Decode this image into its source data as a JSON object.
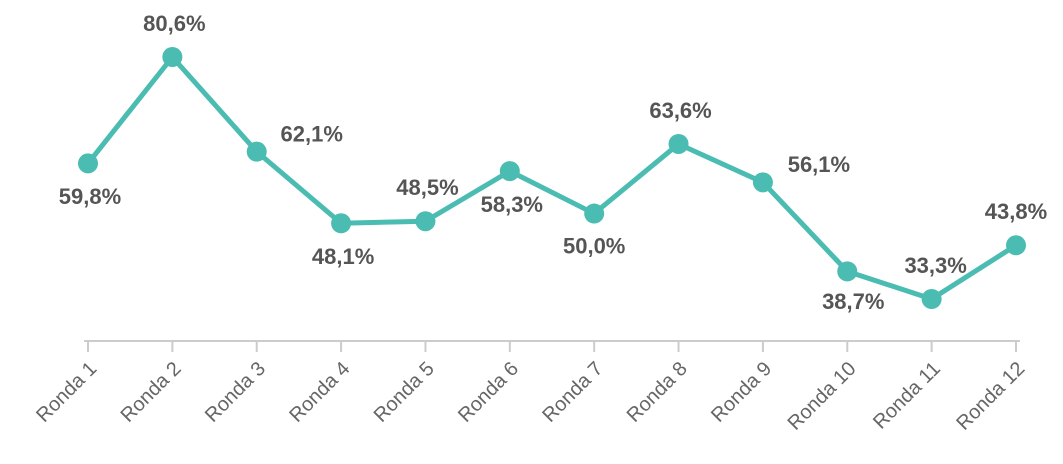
{
  "chart_data": {
    "type": "line",
    "categories": [
      "Ronda 1",
      "Ronda 2",
      "Ronda 3",
      "Ronda 4",
      "Ronda 5",
      "Ronda 6",
      "Ronda 7",
      "Ronda 8",
      "Ronda 9",
      "Ronda 10",
      "Ronda 11",
      "Ronda 12"
    ],
    "values": [
      59.8,
      80.6,
      62.1,
      48.1,
      48.5,
      58.3,
      50.0,
      63.6,
      56.1,
      38.7,
      33.3,
      43.8
    ],
    "value_labels": [
      "59,8%",
      "80,6%",
      "62,1%",
      "48,1%",
      "48,5%",
      "58,3%",
      "50,0%",
      "63,6%",
      "56,1%",
      "38,7%",
      "33,3%",
      "43,8%"
    ],
    "color": "#4bbcb2"
  }
}
